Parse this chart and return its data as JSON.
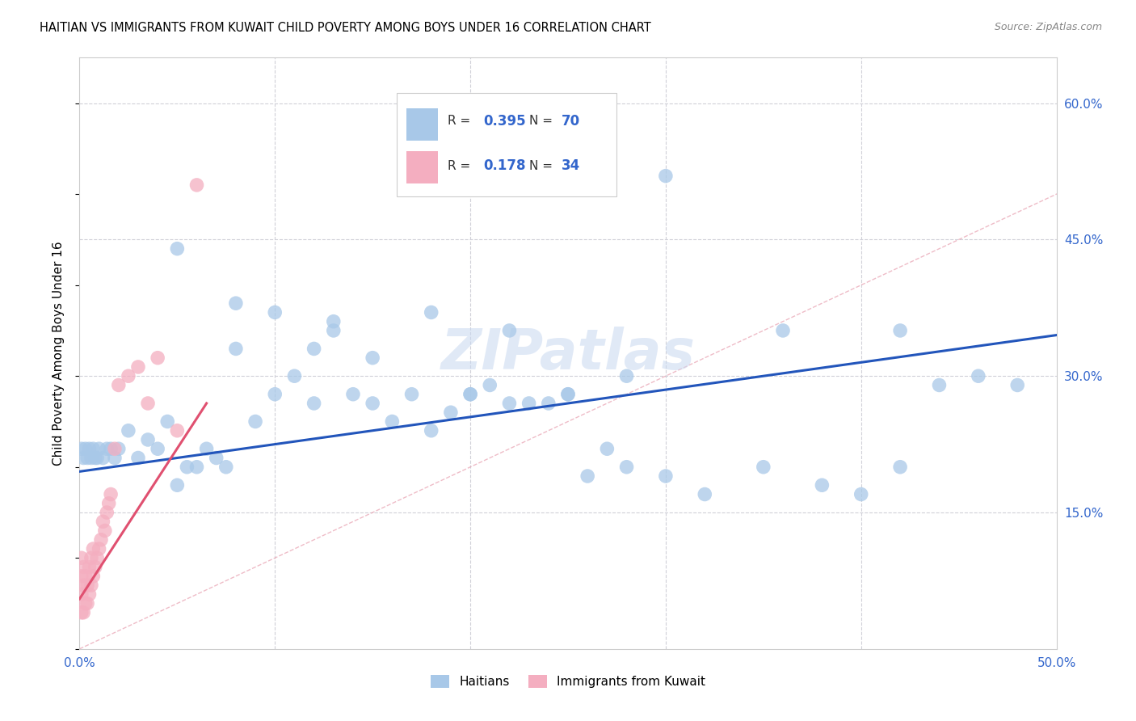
{
  "title": "HAITIAN VS IMMIGRANTS FROM KUWAIT CHILD POVERTY AMONG BOYS UNDER 16 CORRELATION CHART",
  "source": "Source: ZipAtlas.com",
  "ylabel": "Child Poverty Among Boys Under 16",
  "xlim": [
    0.0,
    0.5
  ],
  "ylim": [
    0.0,
    0.65
  ],
  "color_haitian": "#a8c8e8",
  "color_kuwait": "#f4aec0",
  "color_line_haitian": "#2255bb",
  "color_line_kuwait": "#e05070",
  "color_diagonal": "#d0b0b8",
  "watermark": "ZIPatlas",
  "haitian_x": [
    0.001,
    0.002,
    0.003,
    0.004,
    0.005,
    0.006,
    0.007,
    0.008,
    0.009,
    0.01,
    0.012,
    0.014,
    0.016,
    0.018,
    0.02,
    0.025,
    0.03,
    0.035,
    0.04,
    0.045,
    0.05,
    0.055,
    0.06,
    0.065,
    0.07,
    0.075,
    0.08,
    0.09,
    0.1,
    0.11,
    0.12,
    0.13,
    0.14,
    0.15,
    0.16,
    0.17,
    0.18,
    0.19,
    0.2,
    0.21,
    0.22,
    0.23,
    0.24,
    0.25,
    0.26,
    0.27,
    0.28,
    0.3,
    0.32,
    0.35,
    0.38,
    0.4,
    0.42,
    0.44,
    0.05,
    0.08,
    0.1,
    0.13,
    0.18,
    0.22,
    0.28,
    0.3,
    0.36,
    0.42,
    0.46,
    0.48,
    0.12,
    0.15,
    0.2,
    0.25
  ],
  "haitian_y": [
    0.22,
    0.21,
    0.22,
    0.21,
    0.22,
    0.21,
    0.22,
    0.21,
    0.21,
    0.22,
    0.21,
    0.22,
    0.22,
    0.21,
    0.22,
    0.24,
    0.21,
    0.23,
    0.22,
    0.25,
    0.18,
    0.2,
    0.2,
    0.22,
    0.21,
    0.2,
    0.33,
    0.25,
    0.28,
    0.3,
    0.33,
    0.35,
    0.28,
    0.32,
    0.25,
    0.28,
    0.24,
    0.26,
    0.28,
    0.29,
    0.27,
    0.27,
    0.27,
    0.28,
    0.19,
    0.22,
    0.2,
    0.19,
    0.17,
    0.2,
    0.18,
    0.17,
    0.2,
    0.29,
    0.44,
    0.38,
    0.37,
    0.36,
    0.37,
    0.35,
    0.3,
    0.52,
    0.35,
    0.35,
    0.3,
    0.29,
    0.27,
    0.27,
    0.28,
    0.28
  ],
  "kuwait_x": [
    0.001,
    0.001,
    0.001,
    0.001,
    0.002,
    0.002,
    0.002,
    0.003,
    0.003,
    0.004,
    0.004,
    0.005,
    0.005,
    0.006,
    0.006,
    0.007,
    0.007,
    0.008,
    0.009,
    0.01,
    0.011,
    0.012,
    0.013,
    0.014,
    0.015,
    0.016,
    0.018,
    0.02,
    0.025,
    0.03,
    0.035,
    0.04,
    0.05,
    0.06
  ],
  "kuwait_y": [
    0.04,
    0.06,
    0.08,
    0.1,
    0.04,
    0.07,
    0.09,
    0.05,
    0.08,
    0.05,
    0.07,
    0.06,
    0.09,
    0.07,
    0.1,
    0.08,
    0.11,
    0.09,
    0.1,
    0.11,
    0.12,
    0.14,
    0.13,
    0.15,
    0.16,
    0.17,
    0.22,
    0.29,
    0.3,
    0.31,
    0.27,
    0.32,
    0.24,
    0.51
  ],
  "haitian_line": [
    0.0,
    0.5,
    0.195,
    0.345
  ],
  "kuwait_line": [
    0.0,
    0.065,
    0.055,
    0.27
  ]
}
